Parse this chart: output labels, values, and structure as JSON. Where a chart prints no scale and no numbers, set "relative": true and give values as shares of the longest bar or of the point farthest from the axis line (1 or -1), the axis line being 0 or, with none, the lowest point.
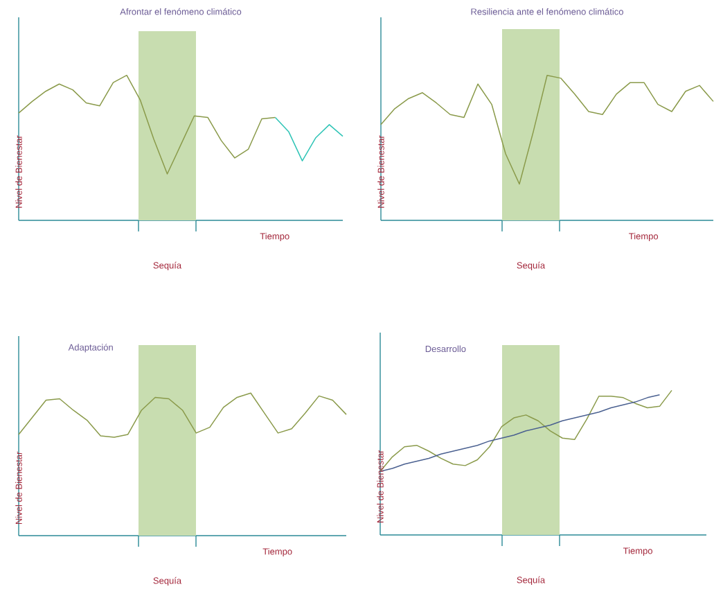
{
  "chart_data": [
    {
      "type": "line",
      "title": "Afrontar el fenómeno climático",
      "xlabel": "Tiempo",
      "ylabel": "Nivel de Bienestar",
      "relative": true,
      "annotations": [
        "Sequía"
      ],
      "categories": [
        null,
        null,
        null,
        null,
        null,
        null,
        null,
        null,
        null,
        null,
        null,
        null,
        null,
        null,
        null,
        null,
        null,
        null,
        null,
        null,
        null,
        null,
        null,
        null,
        null
      ],
      "series": [
        {
          "color": "#8a9a4a",
          "values": [
            0.74,
            0.82,
            0.89,
            0.94,
            0.9,
            0.81,
            0.79,
            0.95,
            1.0,
            0.83,
            0.56,
            0.32,
            0.52,
            0.72,
            0.71,
            0.55,
            0.43,
            0.49,
            0.7,
            0.71,
            null,
            null,
            null,
            null,
            null
          ]
        },
        {
          "color": "#2ec4b6",
          "values": [
            null,
            null,
            null,
            null,
            null,
            null,
            null,
            null,
            null,
            null,
            null,
            null,
            null,
            null,
            null,
            null,
            null,
            null,
            null,
            0.71,
            0.61,
            0.41,
            0.57,
            0.66,
            0.58
          ]
        }
      ]
    },
    {
      "type": "line",
      "title": "Resiliencia ante el fenómeno climático",
      "xlabel": "Tiempo",
      "ylabel": "Nivel de Bienestar",
      "relative": true,
      "annotations": [
        "Sequía"
      ],
      "categories": [
        null,
        null,
        null,
        null,
        null,
        null,
        null,
        null,
        null,
        null,
        null,
        null,
        null,
        null,
        null,
        null,
        null,
        null,
        null,
        null,
        null,
        null,
        null,
        null,
        null
      ],
      "series": [
        {
          "color": "#8a9a4a",
          "values": [
            0.66,
            0.77,
            0.84,
            0.88,
            0.81,
            0.73,
            0.71,
            0.94,
            0.8,
            0.46,
            0.25,
            0.61,
            1.0,
            0.98,
            0.87,
            0.75,
            0.73,
            0.87,
            0.95,
            0.95,
            0.8,
            0.75,
            0.89,
            0.93,
            0.82
          ]
        }
      ]
    },
    {
      "type": "line",
      "title": "Adaptación",
      "xlabel": "Tiempo",
      "ylabel": "Nivel de Bienestar",
      "relative": true,
      "annotations": [
        "Sequía"
      ],
      "categories": [
        null,
        null,
        null,
        null,
        null,
        null,
        null,
        null,
        null,
        null,
        null,
        null,
        null,
        null,
        null,
        null,
        null,
        null,
        null,
        null,
        null,
        null,
        null,
        null,
        null
      ],
      "series": [
        {
          "color": "#8a9a4a",
          "values": [
            0.71,
            0.83,
            0.95,
            0.96,
            0.88,
            0.81,
            0.7,
            0.69,
            0.71,
            0.88,
            0.97,
            0.96,
            0.88,
            0.72,
            0.76,
            0.9,
            0.97,
            1.0,
            0.86,
            0.72,
            0.75,
            0.86,
            0.98,
            0.95,
            0.85
          ]
        }
      ]
    },
    {
      "type": "line",
      "title": "Desarrollo",
      "xlabel": "Tiempo",
      "ylabel": "Nivel de Bienestar",
      "relative": true,
      "annotations": [
        "Sequía"
      ],
      "categories": [
        null,
        null,
        null,
        null,
        null,
        null,
        null,
        null,
        null,
        null,
        null,
        null,
        null,
        null,
        null,
        null,
        null,
        null,
        null,
        null,
        null,
        null,
        null,
        null,
        null
      ],
      "series": [
        {
          "color": "#8a9a4a",
          "values": [
            0.44,
            0.54,
            0.61,
            0.62,
            0.58,
            0.53,
            0.49,
            0.48,
            0.52,
            0.61,
            0.75,
            0.81,
            0.83,
            0.79,
            0.72,
            0.67,
            0.66,
            0.8,
            0.96,
            0.96,
            0.95,
            0.91,
            0.88,
            0.89,
            1.0
          ]
        },
        {
          "color": "#4a6090",
          "values": [
            0.44,
            0.46,
            0.49,
            0.51,
            0.53,
            0.56,
            0.58,
            0.6,
            0.62,
            0.65,
            0.67,
            0.69,
            0.72,
            0.74,
            0.76,
            0.79,
            0.81,
            0.83,
            0.85,
            0.88,
            0.9,
            0.92,
            0.95,
            0.97,
            null
          ]
        }
      ]
    }
  ]
}
